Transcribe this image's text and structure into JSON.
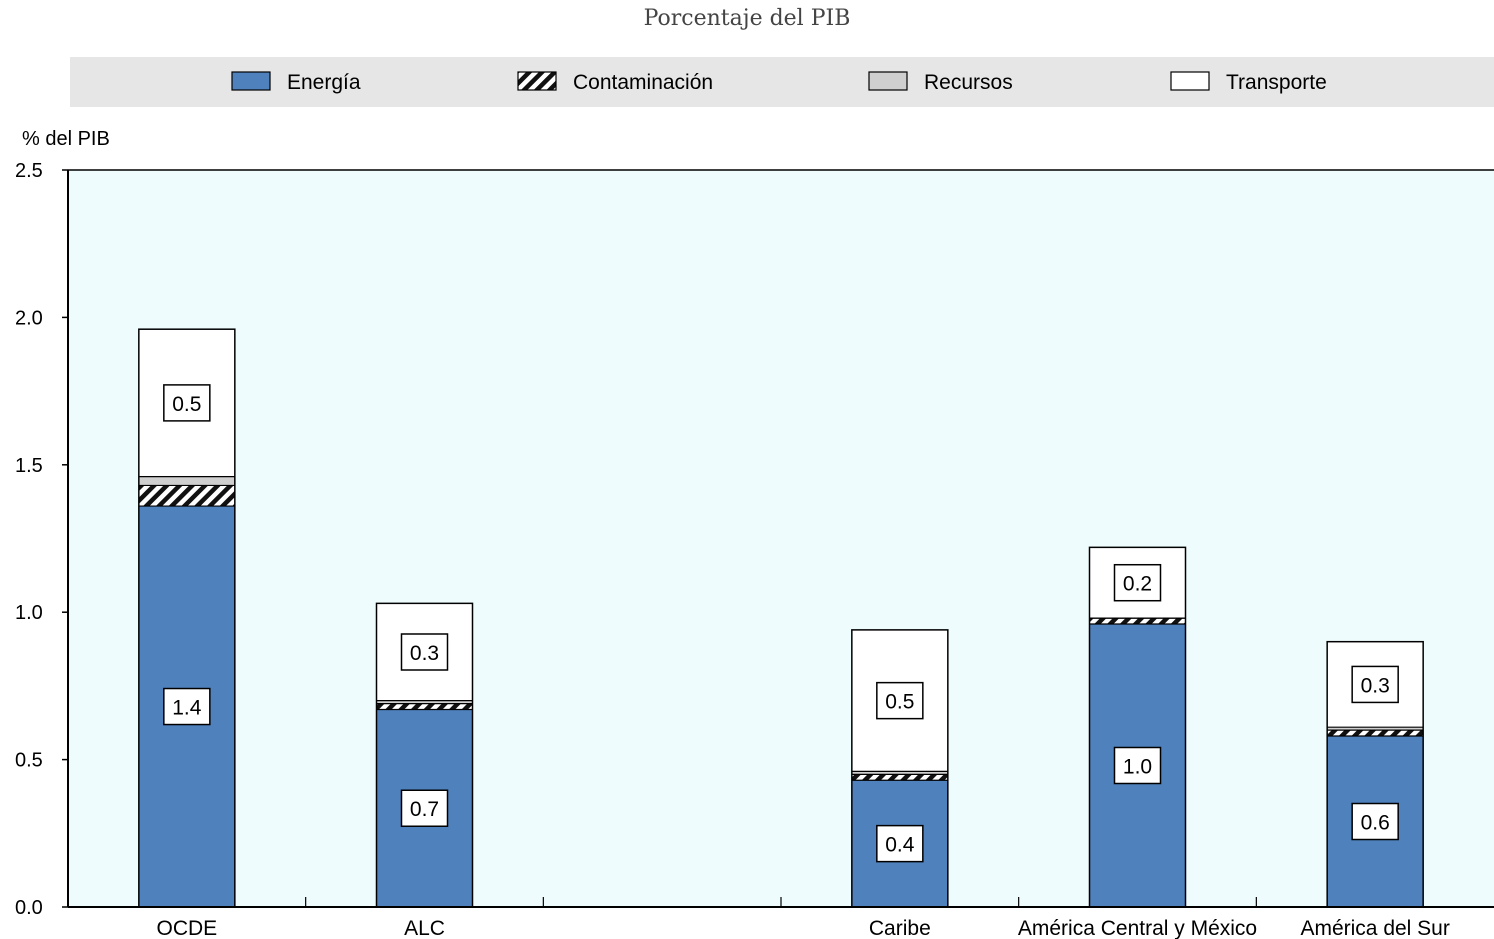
{
  "chart_data": {
    "type": "bar",
    "stacked": true,
    "subtitle": "Porcentaje del PIB",
    "ylabel": "% del PIB",
    "ylim": [
      0,
      2.5
    ],
    "yticks": [
      "0.0",
      "0.5",
      "1.0",
      "1.5",
      "2.0",
      "2.5"
    ],
    "categories": [
      "OCDE",
      "ALC",
      "",
      "Caribe",
      "América Central y México",
      "América del Sur"
    ],
    "legend_placement": "top",
    "series": [
      {
        "name": "Energía",
        "color": "#4f81bd",
        "pattern": "solid",
        "values": [
          1.36,
          0.67,
          null,
          0.43,
          0.96,
          0.58
        ]
      },
      {
        "name": "Contaminación",
        "color": "#111111",
        "pattern": "hatch",
        "values": [
          0.07,
          0.02,
          null,
          0.02,
          0.02,
          0.02
        ]
      },
      {
        "name": "Recursos",
        "color": "#cfcfcf",
        "pattern": "solid",
        "values": [
          0.03,
          0.01,
          null,
          0.01,
          0.0,
          0.01
        ]
      },
      {
        "name": "Transporte",
        "color": "#ffffff",
        "pattern": "solid",
        "values": [
          0.5,
          0.33,
          null,
          0.48,
          0.24,
          0.29
        ]
      }
    ],
    "data_labels": [
      {
        "category": "OCDE",
        "series": "Energía",
        "text": "1.4"
      },
      {
        "category": "OCDE",
        "series": "Transporte",
        "text": "0.5"
      },
      {
        "category": "ALC",
        "series": "Energía",
        "text": "0.7"
      },
      {
        "category": "ALC",
        "series": "Transporte",
        "text": "0.3"
      },
      {
        "category": "Caribe",
        "series": "Energía",
        "text": "0.4"
      },
      {
        "category": "Caribe",
        "series": "Transporte",
        "text": "0.5"
      },
      {
        "category": "América Central y México",
        "series": "Energía",
        "text": "1.0"
      },
      {
        "category": "América Central y México",
        "series": "Transporte",
        "text": "0.2"
      },
      {
        "category": "América del Sur",
        "series": "Energía",
        "text": "0.6"
      },
      {
        "category": "América del Sur",
        "series": "Transporte",
        "text": "0.3"
      }
    ],
    "colors": {
      "plot_background": "#effcfd",
      "legend_background": "#e6e6e6",
      "axis": "#000000"
    }
  }
}
